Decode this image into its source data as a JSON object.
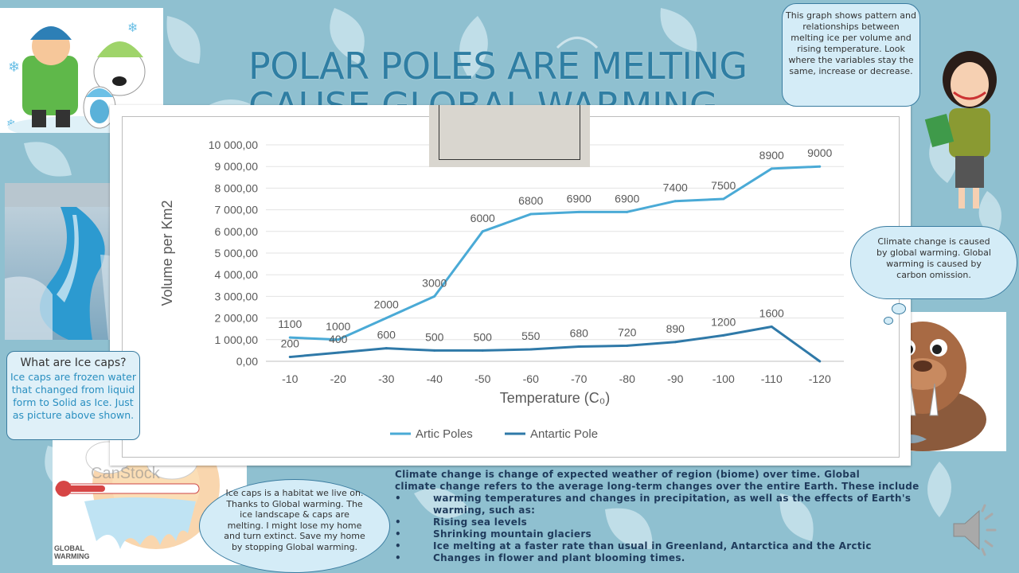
{
  "slide": {
    "title_line1": "POLAR POLES ARE MELTING",
    "title_line2": "CAUSE GLOBAL WARMING"
  },
  "bubbles": {
    "top_right": "This graph shows pattern and relationships between melting ice per volume and  rising temperature. Look where the variables stay the same, increase or decrease.",
    "ice_caps_heading": "What are Ice caps?",
    "ice_caps_text": "Ice caps are frozen water that changed from liquid form to Solid as Ice.  Just as picture above shown.",
    "climate_cloud": "Climate change is caused by global warming. Global warming is caused by carbon omission.",
    "habitat": "Ice caps is a habitat we live on. Thanks to Global warming. The ice landscape & caps are melting. I might lose my home and turn extinct. Save my home by stopping Global warming."
  },
  "bottom": {
    "para1": "Climate change is change of   expected   weather  of region (biome) over time. Global",
    "para2": "climate change refers to the average long-term changes over the entire Earth. These include",
    "bullets": [
      {
        "sym": "•",
        "text": "  warming temperatures and changes in precipitation, as well as the effects of Earth's"
      },
      {
        "sym": "",
        "text": "warming, such as:"
      },
      {
        "sym": "•",
        "text": "Rising sea levels"
      },
      {
        "sym": "•",
        "text": "Shrinking mountain glaciers"
      },
      {
        "sym": "•",
        "text": "Ice melting at a faster rate than usual in Greenland, Antarctica and the Arctic"
      },
      {
        "sym": "•",
        "text": "Changes in flower and plant blooming times."
      }
    ]
  },
  "images": {
    "stock_watermark": "CanStock",
    "global_warming_label": "GLOBAL WARMING"
  },
  "colors": {
    "artic": "#4aaad6",
    "antartic": "#2f79a8",
    "title": "#2f7ea3",
    "bg": "#8fc0d0"
  },
  "chart_data": {
    "type": "line",
    "categories": [
      "-10",
      "-20",
      "-30",
      "-40",
      "-50",
      "-60",
      "-70",
      "-80",
      "-90",
      "-100",
      "-110",
      "-120"
    ],
    "series": [
      {
        "name": "Artic Poles",
        "values": [
          1100,
          1000,
          2000,
          3000,
          6000,
          6800,
          6900,
          6900,
          7400,
          7500,
          8900,
          9000
        ],
        "labels": [
          "1100",
          "1000",
          "2000",
          "3000",
          "6000",
          "6800",
          "6900",
          "6900",
          "7400",
          "7500",
          "8900",
          "9000"
        ]
      },
      {
        "name": "Antartic Pole",
        "values": [
          200,
          400,
          600,
          500,
          500,
          550,
          680,
          720,
          890,
          1200,
          1600,
          0
        ],
        "labels": [
          "200",
          "400",
          "600",
          "500",
          "500",
          "550",
          "680",
          "720",
          "890",
          "1200",
          "1600",
          ""
        ]
      }
    ],
    "yticks": [
      "0,00",
      "1 000,00",
      "2 000,00",
      "3 000,00",
      "4 000,00",
      "5 000,00",
      "6 000,00",
      "7 000,00",
      "8 000,00",
      "9 000,00",
      "10 000,00"
    ],
    "xlabel": "Temperature (C₀)",
    "ylabel": "Volume per Km2",
    "ylim": [
      0,
      10000
    ],
    "grid": true,
    "legend": "bottom"
  }
}
